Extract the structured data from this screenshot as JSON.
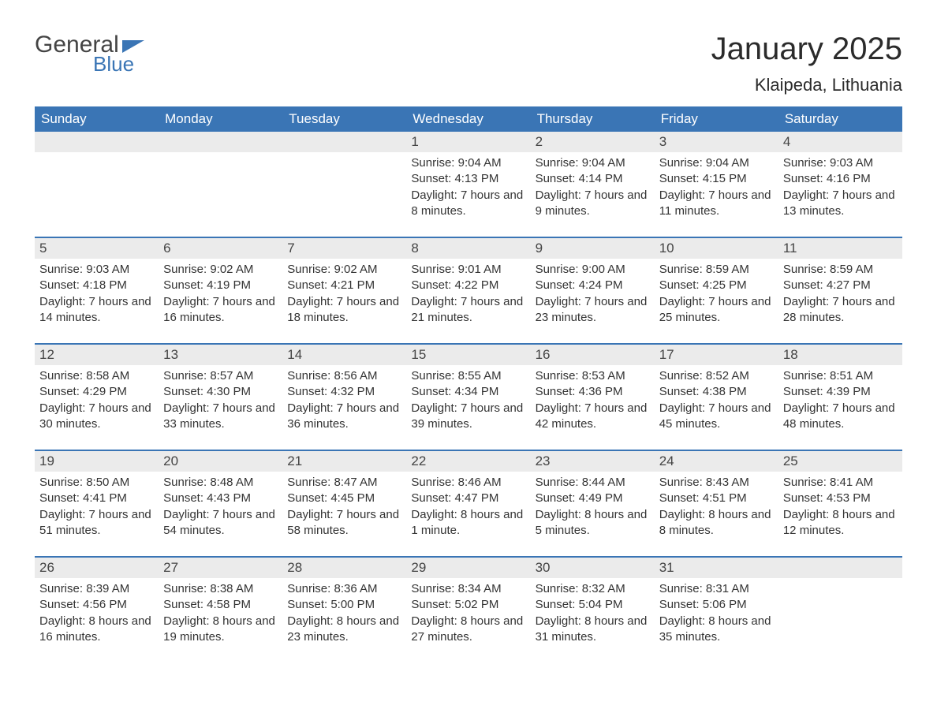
{
  "brand": {
    "word1": "General",
    "word2": "Blue",
    "accent_color": "#3a75b5"
  },
  "title": "January 2025",
  "location": "Klaipeda, Lithuania",
  "typography": {
    "title_fontsize_pt": 30,
    "location_fontsize_pt": 16,
    "body_fontsize_pt": 11,
    "dayheader_fontsize_pt": 13
  },
  "colors": {
    "header_bg": "#3a75b5",
    "header_text": "#ffffff",
    "daynum_bg": "#ebebeb",
    "row_divider": "#3a75b5",
    "body_text": "#333333",
    "background": "#ffffff"
  },
  "layout": {
    "columns": 7,
    "rows": 5,
    "week_start": "Sunday"
  },
  "day_headers": [
    "Sunday",
    "Monday",
    "Tuesday",
    "Wednesday",
    "Thursday",
    "Friday",
    "Saturday"
  ],
  "weeks": [
    [
      {
        "day": "",
        "sunrise": "",
        "sunset": "",
        "daylight": ""
      },
      {
        "day": "",
        "sunrise": "",
        "sunset": "",
        "daylight": ""
      },
      {
        "day": "",
        "sunrise": "",
        "sunset": "",
        "daylight": ""
      },
      {
        "day": "1",
        "sunrise": "Sunrise: 9:04 AM",
        "sunset": "Sunset: 4:13 PM",
        "daylight": "Daylight: 7 hours and 8 minutes."
      },
      {
        "day": "2",
        "sunrise": "Sunrise: 9:04 AM",
        "sunset": "Sunset: 4:14 PM",
        "daylight": "Daylight: 7 hours and 9 minutes."
      },
      {
        "day": "3",
        "sunrise": "Sunrise: 9:04 AM",
        "sunset": "Sunset: 4:15 PM",
        "daylight": "Daylight: 7 hours and 11 minutes."
      },
      {
        "day": "4",
        "sunrise": "Sunrise: 9:03 AM",
        "sunset": "Sunset: 4:16 PM",
        "daylight": "Daylight: 7 hours and 13 minutes."
      }
    ],
    [
      {
        "day": "5",
        "sunrise": "Sunrise: 9:03 AM",
        "sunset": "Sunset: 4:18 PM",
        "daylight": "Daylight: 7 hours and 14 minutes."
      },
      {
        "day": "6",
        "sunrise": "Sunrise: 9:02 AM",
        "sunset": "Sunset: 4:19 PM",
        "daylight": "Daylight: 7 hours and 16 minutes."
      },
      {
        "day": "7",
        "sunrise": "Sunrise: 9:02 AM",
        "sunset": "Sunset: 4:21 PM",
        "daylight": "Daylight: 7 hours and 18 minutes."
      },
      {
        "day": "8",
        "sunrise": "Sunrise: 9:01 AM",
        "sunset": "Sunset: 4:22 PM",
        "daylight": "Daylight: 7 hours and 21 minutes."
      },
      {
        "day": "9",
        "sunrise": "Sunrise: 9:00 AM",
        "sunset": "Sunset: 4:24 PM",
        "daylight": "Daylight: 7 hours and 23 minutes."
      },
      {
        "day": "10",
        "sunrise": "Sunrise: 8:59 AM",
        "sunset": "Sunset: 4:25 PM",
        "daylight": "Daylight: 7 hours and 25 minutes."
      },
      {
        "day": "11",
        "sunrise": "Sunrise: 8:59 AM",
        "sunset": "Sunset: 4:27 PM",
        "daylight": "Daylight: 7 hours and 28 minutes."
      }
    ],
    [
      {
        "day": "12",
        "sunrise": "Sunrise: 8:58 AM",
        "sunset": "Sunset: 4:29 PM",
        "daylight": "Daylight: 7 hours and 30 minutes."
      },
      {
        "day": "13",
        "sunrise": "Sunrise: 8:57 AM",
        "sunset": "Sunset: 4:30 PM",
        "daylight": "Daylight: 7 hours and 33 minutes."
      },
      {
        "day": "14",
        "sunrise": "Sunrise: 8:56 AM",
        "sunset": "Sunset: 4:32 PM",
        "daylight": "Daylight: 7 hours and 36 minutes."
      },
      {
        "day": "15",
        "sunrise": "Sunrise: 8:55 AM",
        "sunset": "Sunset: 4:34 PM",
        "daylight": "Daylight: 7 hours and 39 minutes."
      },
      {
        "day": "16",
        "sunrise": "Sunrise: 8:53 AM",
        "sunset": "Sunset: 4:36 PM",
        "daylight": "Daylight: 7 hours and 42 minutes."
      },
      {
        "day": "17",
        "sunrise": "Sunrise: 8:52 AM",
        "sunset": "Sunset: 4:38 PM",
        "daylight": "Daylight: 7 hours and 45 minutes."
      },
      {
        "day": "18",
        "sunrise": "Sunrise: 8:51 AM",
        "sunset": "Sunset: 4:39 PM",
        "daylight": "Daylight: 7 hours and 48 minutes."
      }
    ],
    [
      {
        "day": "19",
        "sunrise": "Sunrise: 8:50 AM",
        "sunset": "Sunset: 4:41 PM",
        "daylight": "Daylight: 7 hours and 51 minutes."
      },
      {
        "day": "20",
        "sunrise": "Sunrise: 8:48 AM",
        "sunset": "Sunset: 4:43 PM",
        "daylight": "Daylight: 7 hours and 54 minutes."
      },
      {
        "day": "21",
        "sunrise": "Sunrise: 8:47 AM",
        "sunset": "Sunset: 4:45 PM",
        "daylight": "Daylight: 7 hours and 58 minutes."
      },
      {
        "day": "22",
        "sunrise": "Sunrise: 8:46 AM",
        "sunset": "Sunset: 4:47 PM",
        "daylight": "Daylight: 8 hours and 1 minute."
      },
      {
        "day": "23",
        "sunrise": "Sunrise: 8:44 AM",
        "sunset": "Sunset: 4:49 PM",
        "daylight": "Daylight: 8 hours and 5 minutes."
      },
      {
        "day": "24",
        "sunrise": "Sunrise: 8:43 AM",
        "sunset": "Sunset: 4:51 PM",
        "daylight": "Daylight: 8 hours and 8 minutes."
      },
      {
        "day": "25",
        "sunrise": "Sunrise: 8:41 AM",
        "sunset": "Sunset: 4:53 PM",
        "daylight": "Daylight: 8 hours and 12 minutes."
      }
    ],
    [
      {
        "day": "26",
        "sunrise": "Sunrise: 8:39 AM",
        "sunset": "Sunset: 4:56 PM",
        "daylight": "Daylight: 8 hours and 16 minutes."
      },
      {
        "day": "27",
        "sunrise": "Sunrise: 8:38 AM",
        "sunset": "Sunset: 4:58 PM",
        "daylight": "Daylight: 8 hours and 19 minutes."
      },
      {
        "day": "28",
        "sunrise": "Sunrise: 8:36 AM",
        "sunset": "Sunset: 5:00 PM",
        "daylight": "Daylight: 8 hours and 23 minutes."
      },
      {
        "day": "29",
        "sunrise": "Sunrise: 8:34 AM",
        "sunset": "Sunset: 5:02 PM",
        "daylight": "Daylight: 8 hours and 27 minutes."
      },
      {
        "day": "30",
        "sunrise": "Sunrise: 8:32 AM",
        "sunset": "Sunset: 5:04 PM",
        "daylight": "Daylight: 8 hours and 31 minutes."
      },
      {
        "day": "31",
        "sunrise": "Sunrise: 8:31 AM",
        "sunset": "Sunset: 5:06 PM",
        "daylight": "Daylight: 8 hours and 35 minutes."
      },
      {
        "day": "",
        "sunrise": "",
        "sunset": "",
        "daylight": ""
      }
    ]
  ]
}
